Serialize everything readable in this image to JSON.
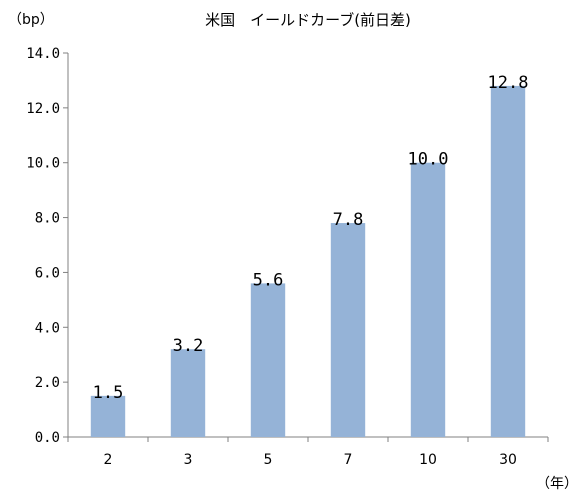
{
  "chart_data": {
    "type": "bar",
    "title": "米国　イールドカーブ(前日差)",
    "ylabel": "（bp）",
    "xlabel": "（年）",
    "categories": [
      "2",
      "3",
      "5",
      "7",
      "10",
      "30"
    ],
    "values": [
      1.5,
      3.2,
      5.6,
      7.8,
      10.0,
      12.8
    ],
    "data_labels": [
      "1.5",
      "3.2",
      "5.6",
      "7.8",
      "10.0",
      "12.8"
    ],
    "ylim": [
      0,
      14
    ],
    "yticks": [
      0,
      2,
      4,
      6,
      8,
      10,
      12,
      14
    ],
    "ytick_labels": [
      "0.0",
      "2.0",
      "4.0",
      "6.0",
      "8.0",
      "10.0",
      "12.0",
      "14.0"
    ],
    "bar_color": "#95B3D7",
    "grid": false,
    "legend": "none"
  }
}
